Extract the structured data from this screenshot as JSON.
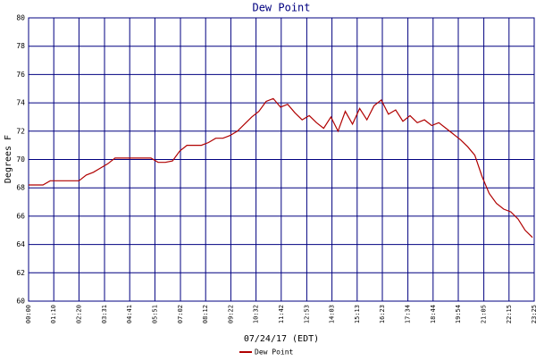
{
  "chart_data": {
    "type": "line",
    "title": "Dew Point",
    "y_label": "Degrees F",
    "x_label": "07/24/17 (EDT)",
    "xlim": [
      0,
      1405
    ],
    "ylim": [
      60,
      80
    ],
    "xticks": [
      {
        "value": 0,
        "label": "00:00"
      },
      {
        "value": 70,
        "label": "01:10"
      },
      {
        "value": 140,
        "label": "02:20"
      },
      {
        "value": 211,
        "label": "03:31"
      },
      {
        "value": 281,
        "label": "04:41"
      },
      {
        "value": 351,
        "label": "05:51"
      },
      {
        "value": 422,
        "label": "07:02"
      },
      {
        "value": 492,
        "label": "08:12"
      },
      {
        "value": 562,
        "label": "09:22"
      },
      {
        "value": 632,
        "label": "10:32"
      },
      {
        "value": 702,
        "label": "11:42"
      },
      {
        "value": 773,
        "label": "12:53"
      },
      {
        "value": 843,
        "label": "14:03"
      },
      {
        "value": 913,
        "label": "15:13"
      },
      {
        "value": 983,
        "label": "16:23"
      },
      {
        "value": 1054,
        "label": "17:34"
      },
      {
        "value": 1124,
        "label": "18:44"
      },
      {
        "value": 1194,
        "label": "19:54"
      },
      {
        "value": 1265,
        "label": "21:05"
      },
      {
        "value": 1335,
        "label": "22:15"
      },
      {
        "value": 1405,
        "label": "23:25"
      }
    ],
    "yticks": [
      60,
      62,
      64,
      66,
      68,
      70,
      72,
      74,
      76,
      78,
      80
    ],
    "grid": true,
    "legend": "bottom",
    "x": [
      0,
      20,
      40,
      60,
      80,
      100,
      120,
      140,
      160,
      180,
      200,
      220,
      240,
      260,
      280,
      300,
      320,
      340,
      360,
      380,
      400,
      420,
      440,
      460,
      480,
      500,
      520,
      540,
      560,
      580,
      600,
      620,
      640,
      660,
      680,
      700,
      720,
      740,
      760,
      780,
      800,
      820,
      840,
      860,
      880,
      900,
      920,
      940,
      960,
      980,
      1000,
      1020,
      1040,
      1060,
      1080,
      1100,
      1120,
      1140,
      1160,
      1180,
      1200,
      1220,
      1240,
      1260,
      1280,
      1300,
      1320,
      1340,
      1360,
      1380,
      1400
    ],
    "series": [
      {
        "name": "Dew Point",
        "color": "#b00000",
        "values": [
          68.2,
          68.2,
          68.2,
          68.5,
          68.5,
          68.5,
          68.5,
          68.5,
          68.9,
          69.1,
          69.4,
          69.7,
          70.1,
          70.1,
          70.1,
          70.1,
          70.1,
          70.1,
          69.8,
          69.8,
          69.9,
          70.6,
          71.0,
          71.0,
          71.0,
          71.2,
          71.5,
          71.5,
          71.7,
          72.0,
          72.5,
          73.0,
          73.4,
          74.1,
          74.3,
          73.7,
          73.9,
          73.3,
          72.8,
          73.1,
          72.6,
          72.2,
          73.0,
          72.0,
          73.4,
          72.5,
          73.6,
          72.8,
          73.8,
          74.2,
          73.2,
          73.5,
          72.7,
          73.1,
          72.6,
          72.8,
          72.4,
          72.6,
          72.2,
          71.8,
          71.4,
          70.9,
          70.3,
          68.8,
          67.6,
          66.9,
          66.5,
          66.3,
          65.8,
          65.0,
          64.5
        ]
      }
    ]
  }
}
